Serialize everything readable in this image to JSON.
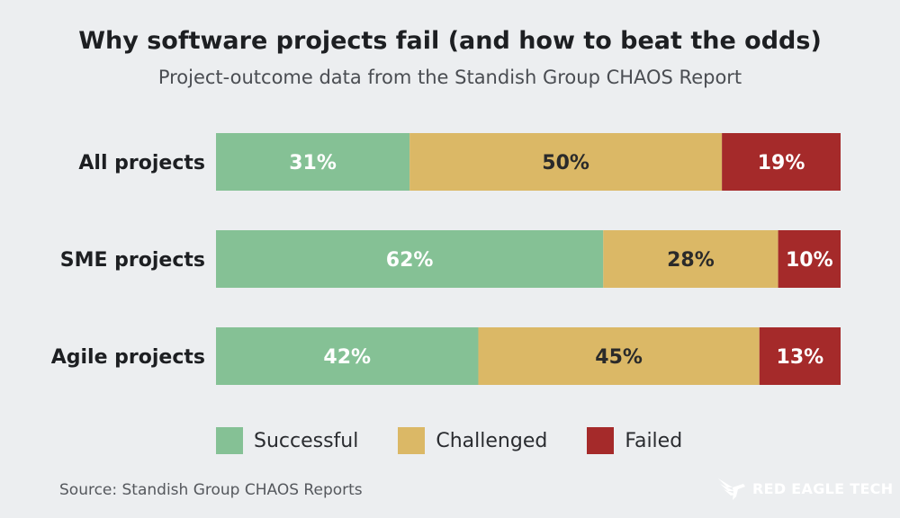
{
  "chart_data": {
    "type": "bar",
    "orientation": "horizontal",
    "stacked": true,
    "title": "Why software projects fail (and how to beat the odds)",
    "subtitle": "Project-outcome data from the Standish Group CHAOS Report",
    "categories": [
      "All projects",
      "SME projects",
      "Agile projects"
    ],
    "series": [
      {
        "name": "Successful",
        "color": "#85c195",
        "label_color": "#ffffff",
        "values": [
          31,
          62,
          42
        ],
        "labels": [
          "31%",
          "62%",
          "42%"
        ]
      },
      {
        "name": "Challenged",
        "color": "#dbb866",
        "label_color": "#2a2a2a",
        "values": [
          50,
          28,
          45
        ],
        "labels": [
          "50%",
          "28%",
          "45%"
        ]
      },
      {
        "name": "Failed",
        "color": "#a52a2a",
        "label_color": "#ffffff",
        "values": [
          19,
          10,
          13
        ],
        "labels": [
          "19%",
          "10%",
          "13%"
        ]
      }
    ],
    "xlim": [
      0,
      100
    ],
    "grid": false,
    "legend_position": "bottom"
  },
  "footer": {
    "source": "Source: Standish Group CHAOS Reports",
    "logo_text": "RED EAGLE TECH"
  }
}
